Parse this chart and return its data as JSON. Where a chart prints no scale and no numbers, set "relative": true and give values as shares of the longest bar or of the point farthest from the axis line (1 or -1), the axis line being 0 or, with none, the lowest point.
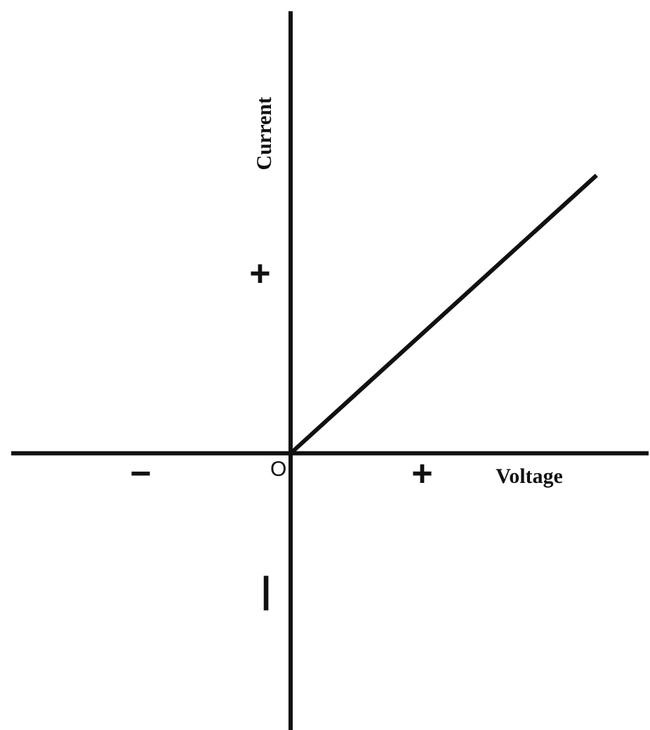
{
  "chart_data": {
    "type": "line",
    "relative": true,
    "xlabel": "Voltage",
    "ylabel": "Current",
    "categories": [
      null,
      null
    ],
    "series": [
      {
        "color": "#111111",
        "values": [
          0,
          1
        ]
      }
    ],
    "annotations": [
      "O",
      "+",
      "−",
      "+",
      "|"
    ],
    "legend": false,
    "marker": "none",
    "line_style": "solid"
  }
}
